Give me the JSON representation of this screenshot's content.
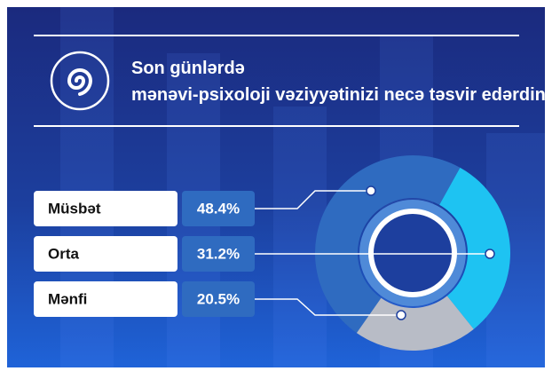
{
  "chart_data": {
    "type": "pie",
    "title": "Son günlərdə mənəvi-psixoloji vəziyyətinizi necə təsvir edərdiniz?",
    "categories": [
      "Müsbət",
      "Orta",
      "Mənfi"
    ],
    "values": [
      48.4,
      31.2,
      20.5
    ],
    "value_labels": [
      "48.4%",
      "31.2%",
      "20.5%"
    ],
    "colors": [
      "#2f6bc0",
      "#1ec3f2",
      "#b8bcc6"
    ]
  }
}
